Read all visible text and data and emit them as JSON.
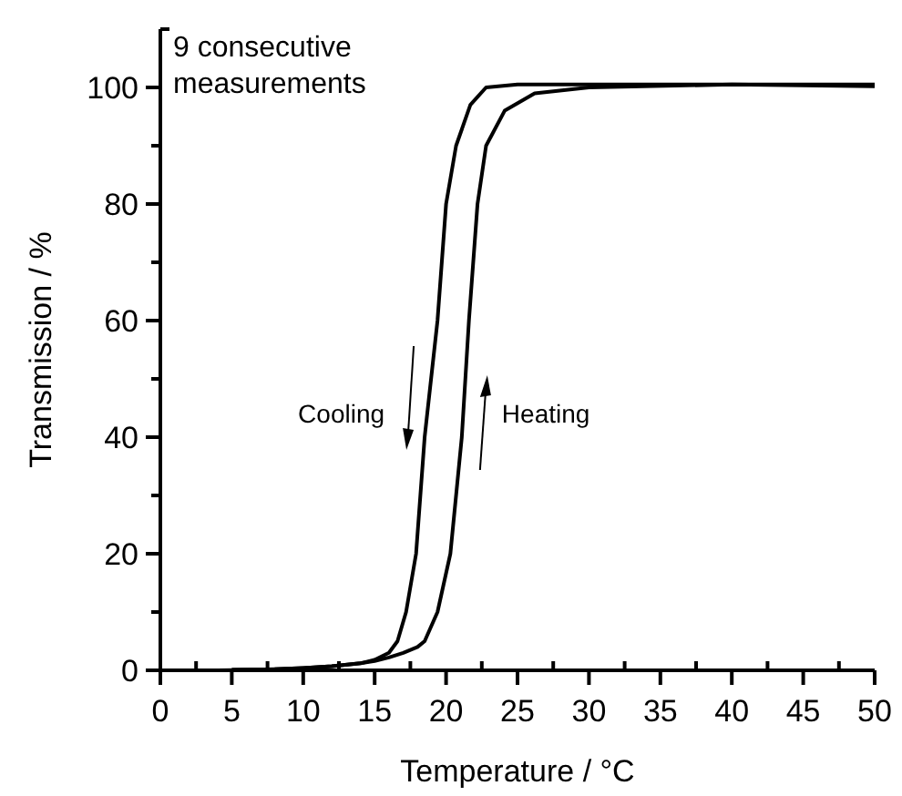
{
  "chart_data": {
    "type": "line",
    "xlabel": "Temperature / °C",
    "ylabel": "Transmission / %",
    "annotations": [
      "9 consecutive measurements",
      {
        "text": "Cooling",
        "x": 18.5,
        "y": 40
      },
      {
        "text": "Heating",
        "x": 21.1,
        "y": 40
      }
    ],
    "xlim": [
      0,
      50
    ],
    "ylim": [
      0,
      110
    ],
    "xticks": [
      0,
      {
        "value": 2.5,
        "label": null
      },
      5,
      {
        "value": 7.5,
        "label": null
      },
      10,
      {
        "value": 12.5,
        "label": null
      },
      15,
      {
        "value": 17.5,
        "label": null
      },
      20,
      {
        "value": 22.5,
        "label": null
      },
      25,
      {
        "value": 27.5,
        "label": null
      },
      30,
      {
        "value": 32.5,
        "label": null
      },
      35,
      {
        "value": 37.5,
        "label": null
      },
      40,
      {
        "value": 42.5,
        "label": null
      },
      45,
      {
        "value": 47.5,
        "label": null
      },
      50
    ],
    "yticks": [
      0,
      {
        "value": 10,
        "label": null
      },
      20,
      {
        "value": 30,
        "label": null
      },
      40,
      {
        "value": 50,
        "label": null
      },
      60,
      {
        "value": 70,
        "label": null
      },
      80,
      {
        "value": 90,
        "label": null
      },
      100
    ],
    "grid": false,
    "marker": "none",
    "line_style": "solid",
    "series": [
      {
        "color": "#000000",
        "x": [
          4,
          8,
          10,
          12,
          14,
          15,
          16,
          16.6,
          17.2,
          17.9,
          18.5,
          19.4,
          20,
          20.7,
          21.7,
          22.8,
          25,
          30,
          40,
          50
        ],
        "values": [
          0,
          0.2,
          0.4,
          0.7,
          1.2,
          1.8,
          3,
          5,
          10,
          20,
          40,
          60,
          80,
          90,
          97,
          100,
          100.5,
          100.5,
          100.5,
          100.5
        ]
      },
      {
        "color": "#000000",
        "x": [
          5,
          8,
          10,
          12,
          14,
          15,
          16,
          17,
          18,
          18.5,
          19.4,
          20.3,
          21.1,
          21.6,
          22.2,
          22.8,
          24.1,
          26.2,
          30,
          40,
          50
        ],
        "values": [
          0.1,
          0.2,
          0.4,
          0.7,
          1.2,
          1.6,
          2.2,
          3,
          4,
          5,
          10,
          20,
          40,
          60,
          80,
          90,
          96,
          99,
          100,
          100.5,
          100.2
        ]
      }
    ]
  }
}
